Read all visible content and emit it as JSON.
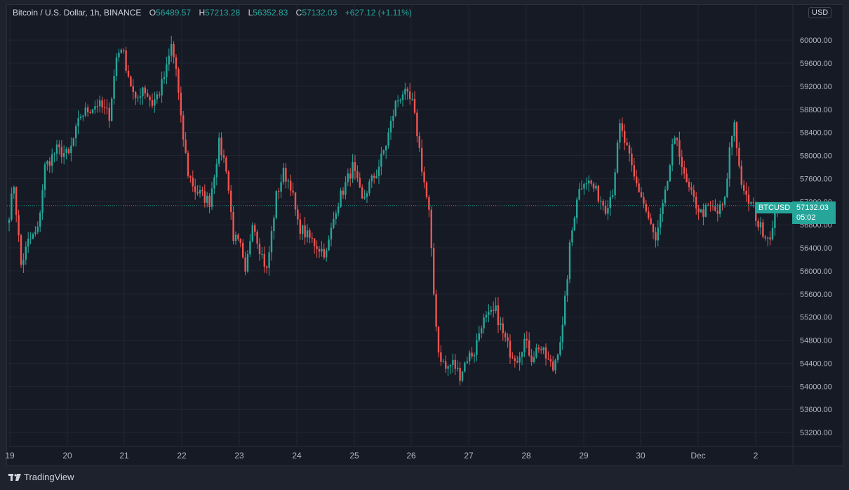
{
  "header": {
    "symbol": "Bitcoin / U.S. Dollar, 1h, BINANCE",
    "o_label": "O",
    "o_value": "56489.57",
    "h_label": "H",
    "h_value": "57213.28",
    "l_label": "L",
    "l_value": "56352.83",
    "c_label": "C",
    "c_value": "57132.03",
    "change": "+627.12 (+1.11%)"
  },
  "currency": "USD",
  "price_tag": {
    "ticker": "BTCUSD",
    "price": "57132.03",
    "countdown": "05:02"
  },
  "branding": {
    "name": "TradingView"
  },
  "colors": {
    "up": "#26a69a",
    "down": "#ef5350",
    "grid": "#232632",
    "axis_text": "#b2b5be"
  },
  "chart_data": {
    "type": "candlestick",
    "interval": "1h",
    "ylim": [
      52970,
      60610
    ],
    "y_ticks": [
      "60000.00",
      "59600.00",
      "59200.00",
      "58800.00",
      "58400.00",
      "58000.00",
      "57600.00",
      "57200.00",
      "56800.00",
      "56400.00",
      "56000.00",
      "55600.00",
      "55200.00",
      "54800.00",
      "54400.00",
      "54000.00",
      "53600.00",
      "53200.00"
    ],
    "x_ticks": [
      "19",
      "20",
      "21",
      "22",
      "23",
      "24",
      "25",
      "26",
      "27",
      "28",
      "29",
      "30",
      "Dec",
      "2"
    ],
    "last_price": 57132.03,
    "waypoints": [
      [
        0,
        57000
      ],
      [
        2,
        57500
      ],
      [
        5,
        56100
      ],
      [
        8,
        56500
      ],
      [
        12,
        56700
      ],
      [
        15,
        57800
      ],
      [
        20,
        58100
      ],
      [
        25,
        58000
      ],
      [
        30,
        58700
      ],
      [
        37,
        58900
      ],
      [
        42,
        58700
      ],
      [
        45,
        59700
      ],
      [
        47,
        59900
      ],
      [
        50,
        59400
      ],
      [
        53,
        58900
      ],
      [
        56,
        59200
      ],
      [
        60,
        58900
      ],
      [
        63,
        59100
      ],
      [
        66,
        59500
      ],
      [
        68,
        59900
      ],
      [
        70,
        59500
      ],
      [
        72,
        58600
      ],
      [
        75,
        57700
      ],
      [
        78,
        57400
      ],
      [
        81,
        57300
      ],
      [
        84,
        57200
      ],
      [
        88,
        58200
      ],
      [
        91,
        57800
      ],
      [
        94,
        56600
      ],
      [
        97,
        56400
      ],
      [
        99,
        55900
      ],
      [
        102,
        56900
      ],
      [
        105,
        56400
      ],
      [
        108,
        56000
      ],
      [
        112,
        57300
      ],
      [
        115,
        57700
      ],
      [
        118,
        57500
      ],
      [
        121,
        56800
      ],
      [
        125,
        56600
      ],
      [
        130,
        56400
      ],
      [
        133,
        56300
      ],
      [
        137,
        57100
      ],
      [
        140,
        57400
      ],
      [
        144,
        57800
      ],
      [
        148,
        57200
      ],
      [
        151,
        57500
      ],
      [
        154,
        57700
      ],
      [
        158,
        58200
      ],
      [
        162,
        58900
      ],
      [
        165,
        59100
      ],
      [
        169,
        58900
      ],
      [
        171,
        58400
      ],
      [
        173,
        57800
      ],
      [
        176,
        57000
      ],
      [
        178,
        55600
      ],
      [
        180,
        54600
      ],
      [
        183,
        54300
      ],
      [
        186,
        54400
      ],
      [
        189,
        54200
      ],
      [
        192,
        54500
      ],
      [
        195,
        54600
      ],
      [
        198,
        55100
      ],
      [
        201,
        55200
      ],
      [
        204,
        55300
      ],
      [
        207,
        54900
      ],
      [
        210,
        54600
      ],
      [
        213,
        54500
      ],
      [
        216,
        54800
      ],
      [
        219,
        54500
      ],
      [
        222,
        54700
      ],
      [
        225,
        54500
      ],
      [
        228,
        54300
      ],
      [
        232,
        55000
      ],
      [
        235,
        56400
      ],
      [
        238,
        57300
      ],
      [
        241,
        57600
      ],
      [
        244,
        57500
      ],
      [
        247,
        57300
      ],
      [
        250,
        57100
      ],
      [
        253,
        57400
      ],
      [
        256,
        58500
      ],
      [
        259,
        58100
      ],
      [
        262,
        57600
      ],
      [
        265,
        57300
      ],
      [
        268,
        56900
      ],
      [
        271,
        56500
      ],
      [
        275,
        57300
      ],
      [
        278,
        58100
      ],
      [
        280,
        58300
      ],
      [
        283,
        57600
      ],
      [
        286,
        57300
      ],
      [
        290,
        57000
      ],
      [
        294,
        57100
      ],
      [
        297,
        57000
      ],
      [
        300,
        57200
      ],
      [
        302,
        58100
      ],
      [
        304,
        58600
      ],
      [
        306,
        57800
      ],
      [
        308,
        57300
      ],
      [
        312,
        57100
      ],
      [
        314,
        56800
      ],
      [
        318,
        56600
      ],
      [
        320,
        56700
      ],
      [
        322,
        57132
      ]
    ]
  }
}
